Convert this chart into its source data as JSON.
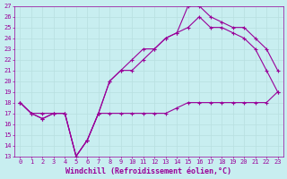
{
  "xlabel": "Windchill (Refroidissement éolien,°C)",
  "xlim": [
    -0.5,
    23.5
  ],
  "ylim": [
    13,
    27
  ],
  "xticks": [
    0,
    1,
    2,
    3,
    4,
    5,
    6,
    7,
    8,
    9,
    10,
    11,
    12,
    13,
    14,
    15,
    16,
    17,
    18,
    19,
    20,
    21,
    22,
    23
  ],
  "yticks": [
    13,
    14,
    15,
    16,
    17,
    18,
    19,
    20,
    21,
    22,
    23,
    24,
    25,
    26,
    27
  ],
  "bg_color": "#c8eef0",
  "line_color": "#990099",
  "grid_color": "#b8dfe0",
  "line1_x": [
    0,
    1,
    2,
    3,
    4,
    5,
    6,
    7,
    8,
    9,
    10,
    11,
    12,
    13,
    14,
    15,
    16,
    17,
    18,
    19,
    20,
    21,
    22,
    23
  ],
  "line1_y": [
    18,
    17,
    17,
    17,
    17,
    13,
    14.5,
    17,
    17,
    17,
    17,
    17,
    17,
    17,
    17.5,
    18,
    18,
    18,
    18,
    18,
    18,
    18,
    18,
    19
  ],
  "line2_x": [
    0,
    1,
    2,
    3,
    4,
    5,
    6,
    7,
    8,
    9,
    10,
    11,
    12,
    13,
    14,
    15,
    16,
    17,
    18,
    19,
    20,
    21,
    22,
    23
  ],
  "line2_y": [
    18,
    17,
    16.5,
    17,
    17,
    13,
    14.5,
    17,
    20,
    21,
    22,
    23,
    23,
    24,
    24.5,
    27,
    27,
    26,
    25.5,
    25,
    25,
    24,
    23,
    21
  ],
  "line3_x": [
    0,
    1,
    2,
    3,
    4,
    5,
    6,
    7,
    8,
    9,
    10,
    11,
    12,
    13,
    14,
    15,
    16,
    17,
    18,
    19,
    20,
    21,
    22,
    23
  ],
  "line3_y": [
    18,
    17,
    16.5,
    17,
    17,
    13,
    14.5,
    17,
    20,
    21,
    21,
    22,
    23,
    24,
    24.5,
    25,
    26,
    25,
    25,
    24.5,
    24,
    23,
    21,
    19
  ],
  "marker": "+",
  "markersize": 3.0,
  "linewidth": 0.8,
  "tick_fontsize": 5.0,
  "label_fontsize": 6.0
}
